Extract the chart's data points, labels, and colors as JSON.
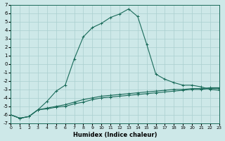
{
  "title": "",
  "xlabel": "Humidex (Indice chaleur)",
  "bg_color": "#cde8e8",
  "grid_color": "#aacfcf",
  "line_color": "#1a6b5a",
  "xlim": [
    0,
    23
  ],
  "ylim": [
    -7,
    7
  ],
  "xticks": [
    0,
    1,
    2,
    3,
    4,
    5,
    6,
    7,
    8,
    9,
    10,
    11,
    12,
    13,
    14,
    15,
    16,
    17,
    18,
    19,
    20,
    21,
    22,
    23
  ],
  "yticks": [
    -7,
    -6,
    -5,
    -4,
    -3,
    -2,
    -1,
    0,
    1,
    2,
    3,
    4,
    5,
    6,
    7
  ],
  "line1_x": [
    0,
    1,
    2,
    3,
    4,
    5,
    6,
    7,
    8,
    9,
    10,
    11,
    12,
    13,
    14,
    15,
    16,
    17,
    18,
    19,
    20,
    21,
    22,
    23
  ],
  "line1_y": [
    -6.0,
    -6.4,
    -6.2,
    -5.4,
    -4.4,
    -3.2,
    -2.5,
    0.6,
    3.2,
    4.3,
    4.8,
    5.5,
    5.9,
    6.5,
    5.6,
    2.3,
    -1.2,
    -1.8,
    -2.2,
    -2.5,
    -2.5,
    -2.7,
    -3.0,
    -3.1
  ],
  "line2_x": [
    0,
    1,
    2,
    3,
    4,
    5,
    6,
    7,
    8,
    9,
    10,
    11,
    12,
    13,
    14,
    15,
    16,
    17,
    18,
    19,
    20,
    21,
    22,
    23
  ],
  "line2_y": [
    -6.0,
    -6.4,
    -6.2,
    -5.4,
    -5.2,
    -5.0,
    -4.8,
    -4.5,
    -4.2,
    -4.0,
    -3.8,
    -3.7,
    -3.6,
    -3.5,
    -3.4,
    -3.3,
    -3.2,
    -3.1,
    -3.0,
    -3.0,
    -2.9,
    -2.9,
    -2.8,
    -2.8
  ],
  "line3_x": [
    0,
    1,
    2,
    3,
    4,
    5,
    6,
    7,
    8,
    9,
    10,
    11,
    12,
    13,
    14,
    15,
    16,
    17,
    18,
    19,
    20,
    21,
    22,
    23
  ],
  "line3_y": [
    -6.0,
    -6.4,
    -6.2,
    -5.4,
    -5.3,
    -5.1,
    -5.0,
    -4.7,
    -4.5,
    -4.2,
    -4.0,
    -3.9,
    -3.8,
    -3.7,
    -3.6,
    -3.5,
    -3.4,
    -3.3,
    -3.2,
    -3.1,
    -3.0,
    -3.0,
    -2.9,
    -2.9
  ],
  "marker_size": 3,
  "line_width": 0.8
}
